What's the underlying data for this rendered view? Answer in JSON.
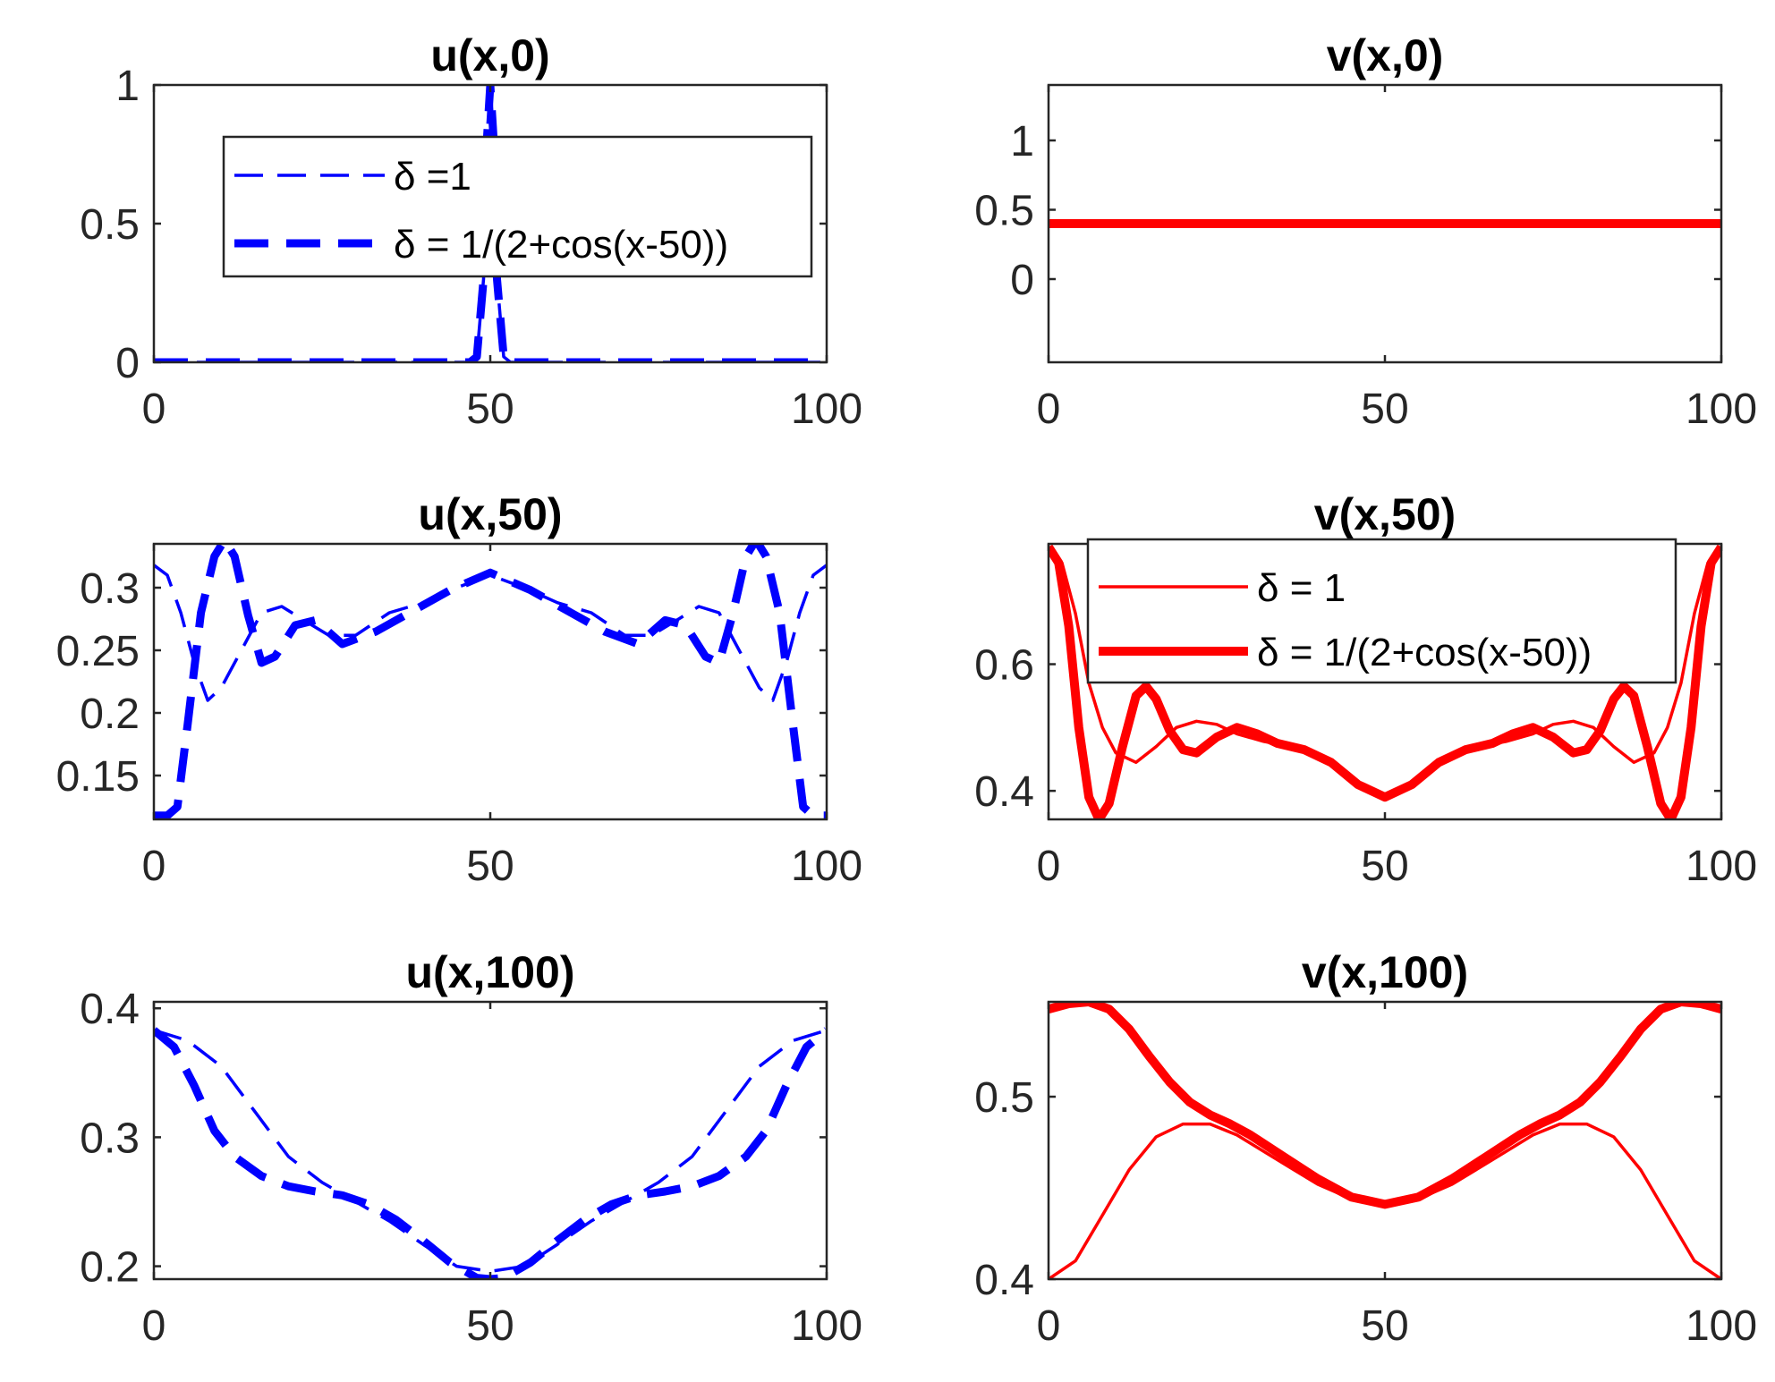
{
  "colors": {
    "u": "#0000ff",
    "v": "#ff0000",
    "axis": "#262626",
    "legend_border": "#262626"
  },
  "legend_u": {
    "entries": [
      "δ =1",
      "δ = 1/(2+cos(x-50))"
    ]
  },
  "legend_v": {
    "entries": [
      "δ = 1",
      "δ = 1/(2+cos(x-50))"
    ]
  },
  "chart_data": [
    {
      "type": "line",
      "title": "u(x,0)",
      "color": "u",
      "xlim": [
        0,
        100
      ],
      "ylim": [
        0,
        1
      ],
      "xticks": [
        0,
        50,
        100
      ],
      "xticklabels": [
        "0",
        "50",
        "100"
      ],
      "yticks": [
        0,
        0.5,
        1
      ],
      "yticklabels": [
        "0",
        "0.5",
        "1"
      ],
      "legend": "legend_u",
      "series": [
        {
          "name": "δ =1",
          "style": "dash-thin",
          "x": [
            0,
            47,
            48,
            49,
            49.5,
            50,
            50.5,
            51,
            52,
            53,
            100
          ],
          "y": [
            0,
            0,
            0.02,
            0.3,
            0.8,
            1,
            0.8,
            0.3,
            0.02,
            0,
            0
          ]
        },
        {
          "name": "δ = 1/(2+cos(x-50))",
          "style": "dash-thick",
          "x": [
            0,
            47,
            48,
            49,
            49.5,
            50,
            50.5,
            51,
            52,
            53,
            100
          ],
          "y": [
            0,
            0,
            0.02,
            0.3,
            0.8,
            1,
            0.8,
            0.3,
            0.02,
            0,
            0
          ]
        }
      ]
    },
    {
      "type": "line",
      "title": "v(x,0)",
      "color": "v",
      "xlim": [
        0,
        100
      ],
      "ylim": [
        -0.6,
        1.4
      ],
      "xticks": [
        0,
        50,
        100
      ],
      "xticklabels": [
        "0",
        "50",
        "100"
      ],
      "yticks": [
        0,
        0.5,
        1
      ],
      "yticklabels": [
        "0",
        "0.5",
        "1"
      ],
      "series": [
        {
          "name": "δ = 1",
          "style": "solid-thin",
          "x": [
            0,
            100
          ],
          "y": [
            0.4,
            0.4
          ]
        },
        {
          "name": "δ = 1/(2+cos(x-50))",
          "style": "solid-thick",
          "x": [
            0,
            100
          ],
          "y": [
            0.4,
            0.4
          ]
        }
      ]
    },
    {
      "type": "line",
      "title": "u(x,50)",
      "color": "u",
      "xlim": [
        0,
        100
      ],
      "ylim": [
        0.115,
        0.335
      ],
      "xticks": [
        0,
        50,
        100
      ],
      "xticklabels": [
        "0",
        "50",
        "100"
      ],
      "yticks": [
        0.15,
        0.2,
        0.25,
        0.3
      ],
      "yticklabels": [
        "0.15",
        "0.2",
        "0.25",
        "0.3"
      ],
      "series": [
        {
          "name": "δ =1",
          "style": "dash-thin",
          "x": [
            0,
            2,
            4,
            6,
            8,
            10,
            13,
            16,
            19,
            22,
            26,
            30,
            35,
            40,
            45,
            50,
            55,
            60,
            65,
            70,
            74,
            78,
            81,
            84,
            87,
            90,
            92,
            94,
            96,
            98,
            100
          ],
          "y": [
            0.318,
            0.31,
            0.28,
            0.24,
            0.21,
            0.22,
            0.25,
            0.28,
            0.285,
            0.275,
            0.262,
            0.262,
            0.28,
            0.288,
            0.3,
            0.31,
            0.3,
            0.288,
            0.28,
            0.262,
            0.262,
            0.275,
            0.285,
            0.28,
            0.25,
            0.22,
            0.21,
            0.24,
            0.28,
            0.31,
            0.318
          ]
        },
        {
          "name": "δ = 1/(2+cos(x-50))",
          "style": "dash-thick",
          "x": [
            0,
            2,
            3.5,
            5,
            7,
            9,
            10.5,
            12,
            14,
            16,
            18,
            21,
            24,
            28,
            33,
            38,
            44,
            50,
            56,
            62,
            67,
            72,
            76,
            79,
            82,
            84,
            86,
            88,
            89.5,
            91,
            93,
            95,
            96.5,
            98,
            100
          ],
          "y": [
            0.118,
            0.118,
            0.125,
            0.19,
            0.28,
            0.325,
            0.338,
            0.325,
            0.278,
            0.24,
            0.245,
            0.27,
            0.274,
            0.255,
            0.265,
            0.28,
            0.298,
            0.312,
            0.298,
            0.28,
            0.265,
            0.255,
            0.274,
            0.27,
            0.245,
            0.24,
            0.278,
            0.325,
            0.338,
            0.325,
            0.28,
            0.19,
            0.125,
            0.118,
            0.118
          ]
        }
      ]
    },
    {
      "type": "line",
      "title": "v(x,50)",
      "color": "v",
      "xlim": [
        0,
        100
      ],
      "ylim": [
        0.355,
        0.79
      ],
      "xticks": [
        0,
        50,
        100
      ],
      "xticklabels": [
        "0",
        "50",
        "100"
      ],
      "yticks": [
        0.4,
        0.6
      ],
      "yticklabels": [
        "0.4",
        "0.6"
      ],
      "legend": "legend_v",
      "series": [
        {
          "name": "δ = 1",
          "style": "solid-thin",
          "x": [
            0,
            2,
            4,
            6,
            8,
            10,
            13,
            16,
            19,
            22,
            25,
            28,
            32,
            36,
            40,
            45,
            50,
            55,
            60,
            64,
            68,
            72,
            75,
            78,
            81,
            84,
            87,
            90,
            92,
            94,
            96,
            98,
            100
          ],
          "y": [
            0.785,
            0.76,
            0.68,
            0.57,
            0.5,
            0.46,
            0.445,
            0.47,
            0.5,
            0.51,
            0.505,
            0.49,
            0.478,
            0.47,
            0.455,
            0.42,
            0.392,
            0.42,
            0.455,
            0.47,
            0.478,
            0.49,
            0.505,
            0.51,
            0.5,
            0.47,
            0.445,
            0.46,
            0.5,
            0.57,
            0.68,
            0.76,
            0.785
          ]
        },
        {
          "name": "δ = 1/(2+cos(x-50))",
          "style": "solid-thick",
          "x": [
            0,
            1.5,
            3,
            4.5,
            6,
            7.5,
            9,
            11,
            13,
            14.5,
            16,
            18,
            20,
            22,
            25,
            28,
            31,
            34,
            38,
            42,
            46,
            50,
            54,
            58,
            62,
            66,
            69,
            72,
            75,
            78,
            80,
            82,
            84,
            85.5,
            87,
            89,
            91,
            92.5,
            94,
            95.5,
            97,
            98.5,
            100
          ],
          "y": [
            0.785,
            0.76,
            0.66,
            0.5,
            0.39,
            0.355,
            0.38,
            0.47,
            0.55,
            0.565,
            0.545,
            0.495,
            0.465,
            0.46,
            0.485,
            0.5,
            0.49,
            0.475,
            0.465,
            0.445,
            0.41,
            0.39,
            0.41,
            0.445,
            0.465,
            0.475,
            0.49,
            0.5,
            0.485,
            0.46,
            0.465,
            0.495,
            0.545,
            0.565,
            0.55,
            0.47,
            0.38,
            0.355,
            0.39,
            0.5,
            0.66,
            0.76,
            0.785
          ]
        }
      ]
    },
    {
      "type": "line",
      "title": "u(x,100)",
      "color": "u",
      "xlim": [
        0,
        100
      ],
      "ylim": [
        0.19,
        0.405
      ],
      "xticks": [
        0,
        50,
        100
      ],
      "xticklabels": [
        "0",
        "50",
        "100"
      ],
      "yticks": [
        0.2,
        0.3,
        0.4
      ],
      "yticklabels": [
        "0.2",
        "0.3",
        "0.4"
      ],
      "series": [
        {
          "name": "δ =1",
          "style": "dash-thin",
          "x": [
            0,
            5,
            10,
            15,
            20,
            25,
            30,
            35,
            40,
            45,
            50,
            55,
            60,
            65,
            70,
            75,
            80,
            85,
            90,
            95,
            100
          ],
          "y": [
            0.383,
            0.375,
            0.355,
            0.32,
            0.285,
            0.265,
            0.25,
            0.235,
            0.217,
            0.2,
            0.196,
            0.2,
            0.217,
            0.235,
            0.25,
            0.265,
            0.285,
            0.32,
            0.355,
            0.375,
            0.383
          ]
        },
        {
          "name": "δ = 1/(2+cos(x-50))",
          "style": "dash-thick",
          "x": [
            0,
            3,
            6,
            9,
            12,
            16,
            20,
            24,
            28,
            32,
            36,
            40,
            44,
            48,
            50,
            52,
            56,
            60,
            64,
            68,
            72,
            76,
            80,
            84,
            88,
            91,
            94,
            97,
            100
          ],
          "y": [
            0.383,
            0.37,
            0.34,
            0.305,
            0.285,
            0.27,
            0.262,
            0.258,
            0.255,
            0.248,
            0.236,
            0.22,
            0.203,
            0.191,
            0.19,
            0.191,
            0.203,
            0.22,
            0.236,
            0.248,
            0.255,
            0.258,
            0.262,
            0.27,
            0.285,
            0.305,
            0.34,
            0.37,
            0.383
          ]
        }
      ]
    },
    {
      "type": "line",
      "title": "v(x,100)",
      "color": "v",
      "xlim": [
        0,
        100
      ],
      "ylim": [
        0.4,
        0.552
      ],
      "xticks": [
        0,
        50,
        100
      ],
      "xticklabels": [
        "0",
        "50",
        "100"
      ],
      "yticks": [
        0.4,
        0.5
      ],
      "yticklabels": [
        "0.4",
        "0.5"
      ],
      "series": [
        {
          "name": "δ = 1",
          "style": "solid-thin",
          "x": [
            0,
            4,
            8,
            12,
            16,
            20,
            24,
            28,
            32,
            36,
            40,
            45,
            50,
            55,
            60,
            64,
            68,
            72,
            76,
            80,
            84,
            88,
            92,
            96,
            100
          ],
          "y": [
            0.4,
            0.41,
            0.435,
            0.46,
            0.478,
            0.485,
            0.485,
            0.479,
            0.47,
            0.461,
            0.452,
            0.444,
            0.441,
            0.444,
            0.452,
            0.461,
            0.47,
            0.479,
            0.485,
            0.485,
            0.478,
            0.46,
            0.435,
            0.41,
            0.4
          ]
        },
        {
          "name": "δ = 1/(2+cos(x-50))",
          "style": "solid-thick",
          "x": [
            0,
            3,
            6,
            9,
            12,
            15,
            18,
            21,
            24,
            27,
            30,
            35,
            40,
            45,
            50,
            55,
            60,
            65,
            70,
            73,
            76,
            79,
            82,
            85,
            88,
            91,
            94,
            97,
            100
          ],
          "y": [
            0.548,
            0.551,
            0.552,
            0.548,
            0.537,
            0.522,
            0.508,
            0.497,
            0.49,
            0.485,
            0.479,
            0.467,
            0.455,
            0.445,
            0.441,
            0.445,
            0.455,
            0.467,
            0.479,
            0.485,
            0.49,
            0.497,
            0.508,
            0.522,
            0.537,
            0.548,
            0.552,
            0.551,
            0.548
          ]
        }
      ]
    }
  ]
}
